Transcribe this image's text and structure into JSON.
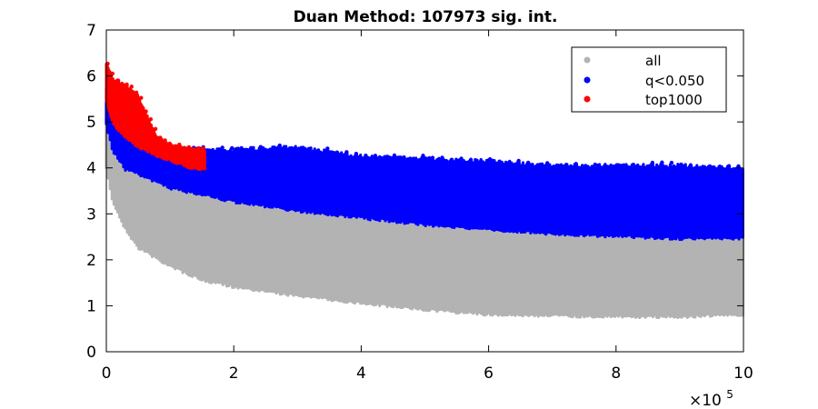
{
  "chart_data": {
    "type": "scatter",
    "title": "Duan Method: 107973 sig. int.",
    "xlabel": "",
    "ylabel": "",
    "xlim": [
      0,
      1000000
    ],
    "ylim": [
      0,
      7
    ],
    "x_ticks": [
      0,
      200000,
      400000,
      600000,
      800000,
      1000000
    ],
    "x_tick_labels": [
      "0",
      "2",
      "4",
      "6",
      "8",
      "10"
    ],
    "x_exponent_base": "×10",
    "x_exponent_power": "5",
    "y_ticks": [
      0,
      1,
      2,
      3,
      4,
      5,
      6,
      7
    ],
    "y_tick_labels": [
      "0",
      "1",
      "2",
      "3",
      "4",
      "5",
      "6",
      "7"
    ],
    "grid": false,
    "legend_position": "top-right",
    "series": [
      {
        "name": "all",
        "color": "#b3b3b3",
        "description_points": {
          "x": [
            0,
            10000,
            30000,
            50000,
            100000,
            150000,
            200000,
            300000,
            400000,
            500000,
            600000,
            700000,
            800000,
            900000,
            1000000
          ],
          "lower": [
            4.0,
            3.3,
            2.7,
            2.3,
            1.9,
            1.6,
            1.45,
            1.25,
            1.1,
            0.95,
            0.85,
            0.82,
            0.8,
            0.8,
            0.85
          ],
          "upper": [
            5.0,
            4.4,
            4.0,
            3.9,
            3.6,
            3.45,
            3.3,
            3.1,
            2.95,
            2.8,
            2.7,
            2.6,
            2.55,
            2.5,
            2.5
          ]
        }
      },
      {
        "name": "q<0.050",
        "color": "#0000ff",
        "description_points": {
          "x": [
            0,
            10000,
            30000,
            50000,
            100000,
            150000,
            200000,
            300000,
            400000,
            500000,
            600000,
            700000,
            800000,
            900000,
            1000000
          ],
          "lower": [
            5.0,
            4.4,
            4.0,
            3.9,
            3.6,
            3.45,
            3.3,
            3.1,
            2.95,
            2.8,
            2.7,
            2.6,
            2.55,
            2.5,
            2.5
          ],
          "upper": [
            5.7,
            5.0,
            4.7,
            4.6,
            4.4,
            4.35,
            4.35,
            4.4,
            4.2,
            4.15,
            4.1,
            4.0,
            4.0,
            4.0,
            3.95
          ]
        }
      },
      {
        "name": "top1000",
        "color": "#ff0000",
        "description_points": {
          "x": [
            0,
            10000,
            30000,
            50000,
            80000,
            100000,
            130000,
            155000
          ],
          "lower": [
            5.5,
            5.0,
            4.7,
            4.5,
            4.3,
            4.2,
            4.05,
            4.0
          ],
          "upper": [
            6.2,
            5.9,
            5.75,
            5.5,
            4.6,
            4.45,
            4.35,
            4.35
          ]
        }
      }
    ]
  }
}
